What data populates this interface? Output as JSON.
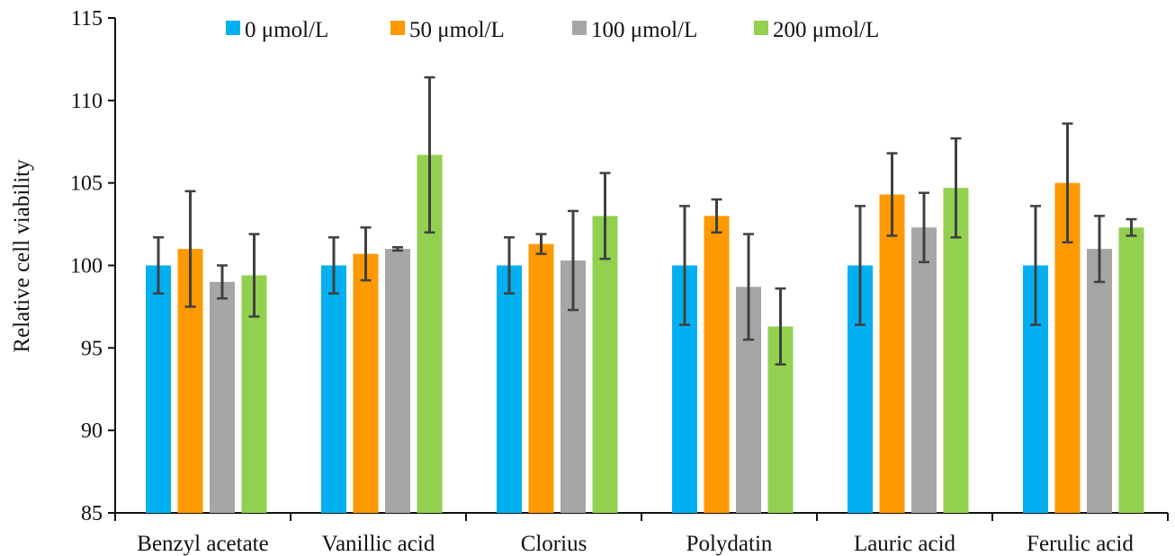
{
  "chart_data": {
    "type": "bar",
    "title": "",
    "xlabel": "",
    "ylabel": "Relative cell viability",
    "ylim": [
      85,
      115
    ],
    "yticks": [
      85,
      90,
      95,
      100,
      105,
      110,
      115
    ],
    "grid": false,
    "legend_position": "top",
    "categories": [
      "Benzyl acetate",
      "Vanillic acid",
      "Clorius",
      "Polydatin",
      "Lauric acid",
      "Ferulic acid"
    ],
    "series": [
      {
        "name": "0 μmol/L",
        "color": "#00B0F0",
        "values": [
          100,
          100,
          100,
          100,
          100,
          100
        ],
        "errors": [
          1.7,
          1.7,
          1.7,
          3.6,
          3.6,
          3.6
        ]
      },
      {
        "name": "50 μmol/L",
        "color": "#FF9900",
        "values": [
          101,
          100.7,
          101.3,
          103,
          104.3,
          105
        ],
        "errors": [
          3.5,
          1.6,
          0.6,
          1.0,
          2.5,
          3.6
        ]
      },
      {
        "name": "100 μmol/L",
        "color": "#A6A6A6",
        "values": [
          99,
          101,
          100.3,
          98.7,
          102.3,
          101
        ],
        "errors": [
          1.0,
          0.1,
          3.0,
          3.2,
          2.1,
          2.0
        ]
      },
      {
        "name": "200 μmol/L",
        "color": "#92D050",
        "values": [
          99.4,
          106.7,
          103,
          96.3,
          104.7,
          102.3
        ],
        "errors": [
          2.5,
          4.7,
          2.6,
          2.3,
          3.0,
          0.5
        ]
      }
    ]
  }
}
